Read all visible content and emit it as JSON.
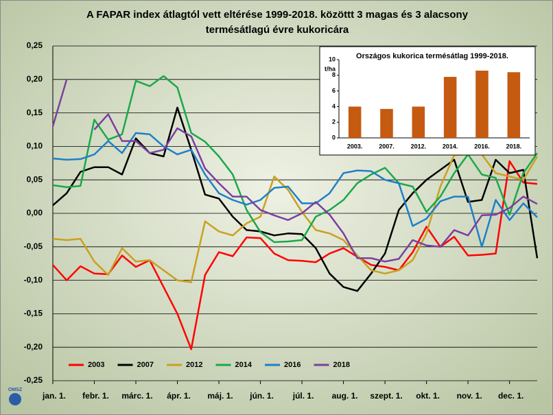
{
  "logo": "OMSZ",
  "chart_data": [
    {
      "type": "line",
      "title": [
        "A FAPAR index átlagtól vett eltérése 1999-2018. közöttt 3 magas és 3 alacsony",
        "termésátlagú évre kukoricára"
      ],
      "categories": [
        "jan. 1.",
        null,
        null,
        "febr. 1.",
        null,
        null,
        "márc. 1.",
        null,
        null,
        "ápr. 1.",
        null,
        null,
        "máj. 1.",
        null,
        null,
        "jún. 1.",
        null,
        null,
        "júl. 1.",
        null,
        null,
        "aug. 1.",
        null,
        null,
        "szept. 1.",
        null,
        null,
        "okt. 1.",
        null,
        null,
        "nov. 1.",
        null,
        null,
        "dec. 1.",
        null,
        null
      ],
      "ylim": [
        -0.25,
        0.25
      ],
      "yticks": [
        {
          "value": -0.25,
          "label": "-0,25"
        },
        {
          "value": -0.2,
          "label": "-0,20"
        },
        {
          "value": -0.15,
          "label": "-0,15"
        },
        {
          "value": -0.1,
          "label": "-0,10"
        },
        {
          "value": -0.05,
          "label": "-0,05"
        },
        {
          "value": 0,
          "label": "0,00"
        },
        {
          "value": 0.05,
          "label": "0,05"
        },
        {
          "value": 0.1,
          "label": "0,10"
        },
        {
          "value": 0.15,
          "label": "0,15"
        },
        {
          "value": 0.2,
          "label": "0,20"
        },
        {
          "value": 0.25,
          "label": "0,25"
        }
      ],
      "grid": true,
      "legend": "bottom",
      "series": [
        {
          "name": "2003",
          "color": "#ff0000",
          "values": [
            -0.077,
            -0.1,
            -0.079,
            -0.09,
            -0.091,
            -0.063,
            -0.08,
            -0.07,
            -0.11,
            -0.15,
            -0.203,
            -0.092,
            -0.058,
            -0.064,
            -0.036,
            -0.037,
            -0.06,
            -0.07,
            -0.071,
            -0.073,
            -0.06,
            -0.052,
            -0.065,
            -0.077,
            -0.08,
            -0.085,
            -0.058,
            -0.02,
            -0.05,
            -0.035,
            -0.063,
            -0.062,
            -0.06,
            0.078,
            0.046,
            0.044
          ]
        },
        {
          "name": "2007",
          "color": "#000000",
          "values": [
            0.012,
            0.03,
            0.062,
            0.069,
            0.069,
            0.058,
            0.112,
            0.09,
            0.085,
            0.158,
            0.095,
            0.028,
            0.022,
            -0.005,
            -0.025,
            -0.027,
            -0.033,
            -0.03,
            -0.031,
            -0.052,
            -0.09,
            -0.11,
            -0.116,
            -0.09,
            -0.06,
            0.005,
            0.03,
            0.05,
            0.065,
            0.08,
            0.017,
            0.02,
            0.08,
            0.06,
            0.065,
            -0.067
          ]
        },
        {
          "name": "2012",
          "color": "#c9a020",
          "values": [
            -0.038,
            -0.04,
            -0.038,
            -0.072,
            -0.092,
            -0.052,
            -0.072,
            -0.07,
            -0.085,
            -0.1,
            -0.103,
            -0.012,
            -0.027,
            -0.033,
            -0.015,
            -0.005,
            0.055,
            0.035,
            0.002,
            -0.025,
            -0.03,
            -0.04,
            -0.063,
            -0.085,
            -0.09,
            -0.085,
            -0.07,
            -0.03,
            0.04,
            0.087,
            0.088,
            0.088,
            0.06,
            0.055,
            0.05,
            0.085
          ]
        },
        {
          "name": "2014",
          "color": "#1aa84a",
          "values": [
            0.042,
            0.039,
            0.041,
            0.14,
            0.11,
            0.118,
            0.198,
            0.19,
            0.205,
            0.188,
            0.12,
            0.107,
            0.085,
            0.058,
            0.005,
            -0.028,
            -0.043,
            -0.042,
            -0.04,
            -0.005,
            0.005,
            0.02,
            0.045,
            0.058,
            0.068,
            0.045,
            0.04,
            0.002,
            0.025,
            0.06,
            0.088,
            0.058,
            0.053,
            -0.002,
            0.06,
            0.09
          ]
        },
        {
          "name": "2016",
          "color": "#1e7fc8",
          "values": [
            0.082,
            0.08,
            0.081,
            0.088,
            0.108,
            0.09,
            0.12,
            0.118,
            0.1,
            0.088,
            0.095,
            0.058,
            0.03,
            0.02,
            0.013,
            0.02,
            0.038,
            0.04,
            0.015,
            0.015,
            0.03,
            0.06,
            0.064,
            0.063,
            0.05,
            0.045,
            -0.019,
            -0.008,
            0.018,
            0.025,
            0.025,
            -0.05,
            0.02,
            -0.01,
            0.015,
            -0.006
          ]
        },
        {
          "name": "2018",
          "color": "#7b3fa0",
          "values": [
            0.13,
            0.2,
            null,
            0.125,
            0.148,
            0.108,
            0.108,
            0.09,
            0.095,
            0.127,
            0.115,
            0.067,
            0.045,
            0.025,
            0.025,
            0.005,
            -0.003,
            -0.01,
            0.0,
            0.017,
            -0.002,
            -0.03,
            -0.067,
            -0.067,
            -0.072,
            -0.068,
            -0.04,
            -0.048,
            -0.05,
            -0.025,
            -0.033,
            -0.003,
            -0.002,
            0.008,
            0.025,
            0.014
          ]
        }
      ]
    },
    {
      "type": "bar",
      "title": "Országos kukorica termésátlag 1999-2018.",
      "y_label": "t/ha",
      "categories": [
        "2003.",
        "2007.",
        "2012.",
        "2014.",
        "2016.",
        "2018."
      ],
      "values": [
        4.0,
        3.7,
        4.0,
        7.8,
        8.6,
        8.4
      ],
      "color": "#c55a11",
      "ylim": [
        0,
        10
      ],
      "yticks": [
        0,
        2,
        4,
        6,
        8,
        10
      ]
    }
  ]
}
